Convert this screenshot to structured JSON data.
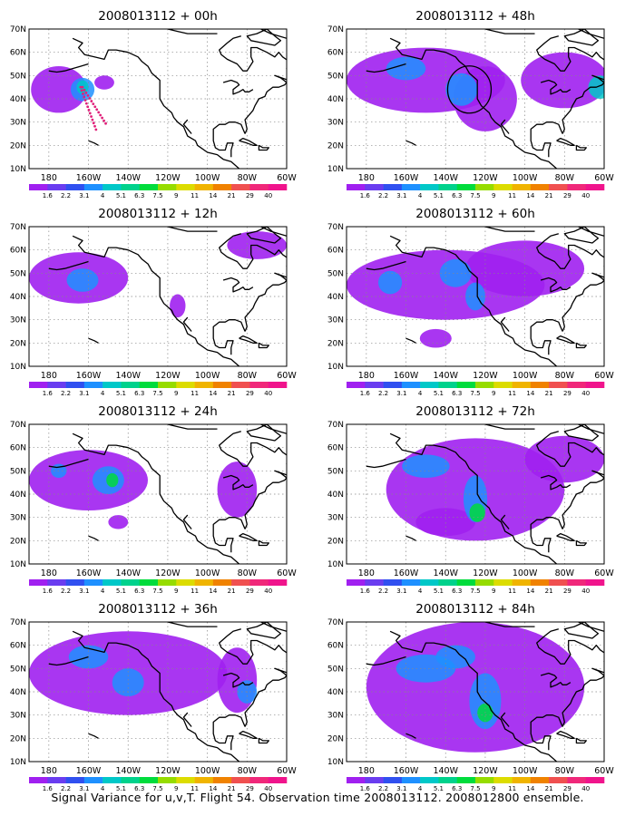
{
  "footer": {
    "caption": "Signal Variance for u,v,T. Flight 54. Observation time 2008013112. 2008012800 ensemble."
  },
  "axes": {
    "lat_ticks": [
      "10N",
      "20N",
      "30N",
      "40N",
      "50N",
      "60N",
      "70N"
    ],
    "lon_ticks": [
      "180",
      "160W",
      "140W",
      "120W",
      "100W",
      "80W",
      "60W"
    ]
  },
  "colorbar": {
    "labels": [
      "1.6",
      "2.2",
      "3.1",
      "4",
      "5.1",
      "6.3",
      "7.5",
      "9",
      "11",
      "14",
      "21",
      "29",
      "40"
    ],
    "colors": [
      "#a020f0",
      "#6a3df0",
      "#3050f0",
      "#1e90ff",
      "#00c8c8",
      "#00d28c",
      "#00dc3c",
      "#96dc00",
      "#dcdc00",
      "#f0b400",
      "#f08200",
      "#f05050",
      "#f0287a",
      "#f0148c"
    ]
  },
  "panels": [
    {
      "title": "2008013112 + 00h",
      "blobs": [
        {
          "lon": -175,
          "lat": 44,
          "rx": 14,
          "ry": 10,
          "lvl": 1
        },
        {
          "lon": -163,
          "lat": 44,
          "rx": 6,
          "ry": 5,
          "lvl": 3
        },
        {
          "lon": -163,
          "lat": 45,
          "rx": 3,
          "ry": 3,
          "lvl": 4
        },
        {
          "lon": -152,
          "lat": 47,
          "rx": 5,
          "ry": 3,
          "lvl": 1
        }
      ]
    },
    {
      "title": "2008013112 + 48h",
      "blobs": [
        {
          "lon": -150,
          "lat": 48,
          "rx": 40,
          "ry": 14,
          "lvl": 1
        },
        {
          "lon": -120,
          "lat": 40,
          "rx": 16,
          "ry": 14,
          "lvl": 1
        },
        {
          "lon": -80,
          "lat": 48,
          "rx": 22,
          "ry": 12,
          "lvl": 1
        },
        {
          "lon": -160,
          "lat": 53,
          "rx": 10,
          "ry": 5,
          "lvl": 3
        },
        {
          "lon": -132,
          "lat": 44,
          "rx": 8,
          "ry": 7,
          "lvl": 3
        },
        {
          "lon": -62,
          "lat": 45,
          "rx": 6,
          "ry": 5,
          "lvl": 4
        }
      ]
    },
    {
      "title": "2008013112 + 12h",
      "blobs": [
        {
          "lon": -165,
          "lat": 48,
          "rx": 25,
          "ry": 11,
          "lvl": 1
        },
        {
          "lon": -163,
          "lat": 47,
          "rx": 8,
          "ry": 5,
          "lvl": 3
        },
        {
          "lon": -75,
          "lat": 62,
          "rx": 15,
          "ry": 6,
          "lvl": 1
        },
        {
          "lon": -115,
          "lat": 36,
          "rx": 4,
          "ry": 5,
          "lvl": 1
        }
      ]
    },
    {
      "title": "2008013112 + 60h",
      "blobs": [
        {
          "lon": -140,
          "lat": 45,
          "rx": 50,
          "ry": 15,
          "lvl": 1
        },
        {
          "lon": -100,
          "lat": 52,
          "rx": 30,
          "ry": 12,
          "lvl": 1
        },
        {
          "lon": -145,
          "lat": 22,
          "rx": 8,
          "ry": 4,
          "lvl": 1
        },
        {
          "lon": -168,
          "lat": 46,
          "rx": 6,
          "ry": 5,
          "lvl": 3
        },
        {
          "lon": -135,
          "lat": 50,
          "rx": 8,
          "ry": 6,
          "lvl": 3
        },
        {
          "lon": -125,
          "lat": 40,
          "rx": 5,
          "ry": 6,
          "lvl": 3
        }
      ]
    },
    {
      "title": "2008013112 + 24h",
      "blobs": [
        {
          "lon": -160,
          "lat": 46,
          "rx": 30,
          "ry": 13,
          "lvl": 1
        },
        {
          "lon": -85,
          "lat": 42,
          "rx": 10,
          "ry": 12,
          "lvl": 1
        },
        {
          "lon": -145,
          "lat": 28,
          "rx": 5,
          "ry": 3,
          "lvl": 1
        },
        {
          "lon": -150,
          "lat": 46,
          "rx": 8,
          "ry": 6,
          "lvl": 3
        },
        {
          "lon": -148,
          "lat": 46,
          "rx": 3,
          "ry": 3,
          "lvl": 6
        },
        {
          "lon": -175,
          "lat": 50,
          "rx": 4,
          "ry": 3,
          "lvl": 3
        }
      ]
    },
    {
      "title": "2008013112 + 72h",
      "blobs": [
        {
          "lon": -125,
          "lat": 42,
          "rx": 45,
          "ry": 22,
          "lvl": 1
        },
        {
          "lon": -80,
          "lat": 55,
          "rx": 20,
          "ry": 10,
          "lvl": 1
        },
        {
          "lon": -140,
          "lat": 28,
          "rx": 15,
          "ry": 6,
          "lvl": 1
        },
        {
          "lon": -150,
          "lat": 52,
          "rx": 12,
          "ry": 5,
          "lvl": 3
        },
        {
          "lon": -125,
          "lat": 38,
          "rx": 6,
          "ry": 10,
          "lvl": 3
        },
        {
          "lon": -124,
          "lat": 32,
          "rx": 4,
          "ry": 4,
          "lvl": 6
        }
      ]
    },
    {
      "title": "2008013112 + 36h",
      "blobs": [
        {
          "lon": -140,
          "lat": 48,
          "rx": 50,
          "ry": 18,
          "lvl": 1
        },
        {
          "lon": -85,
          "lat": 45,
          "rx": 10,
          "ry": 14,
          "lvl": 1
        },
        {
          "lon": -160,
          "lat": 55,
          "rx": 10,
          "ry": 5,
          "lvl": 3
        },
        {
          "lon": -140,
          "lat": 44,
          "rx": 8,
          "ry": 6,
          "lvl": 3
        },
        {
          "lon": -80,
          "lat": 40,
          "rx": 5,
          "ry": 5,
          "lvl": 3
        }
      ]
    },
    {
      "title": "2008013112 + 84h",
      "blobs": [
        {
          "lon": -125,
          "lat": 42,
          "rx": 55,
          "ry": 28,
          "lvl": 1
        },
        {
          "lon": -150,
          "lat": 50,
          "rx": 15,
          "ry": 6,
          "lvl": 3
        },
        {
          "lon": -120,
          "lat": 36,
          "rx": 8,
          "ry": 12,
          "lvl": 3
        },
        {
          "lon": -120,
          "lat": 31,
          "rx": 4,
          "ry": 4,
          "lvl": 6
        },
        {
          "lon": -135,
          "lat": 55,
          "rx": 10,
          "ry": 5,
          "lvl": 3
        }
      ]
    }
  ]
}
